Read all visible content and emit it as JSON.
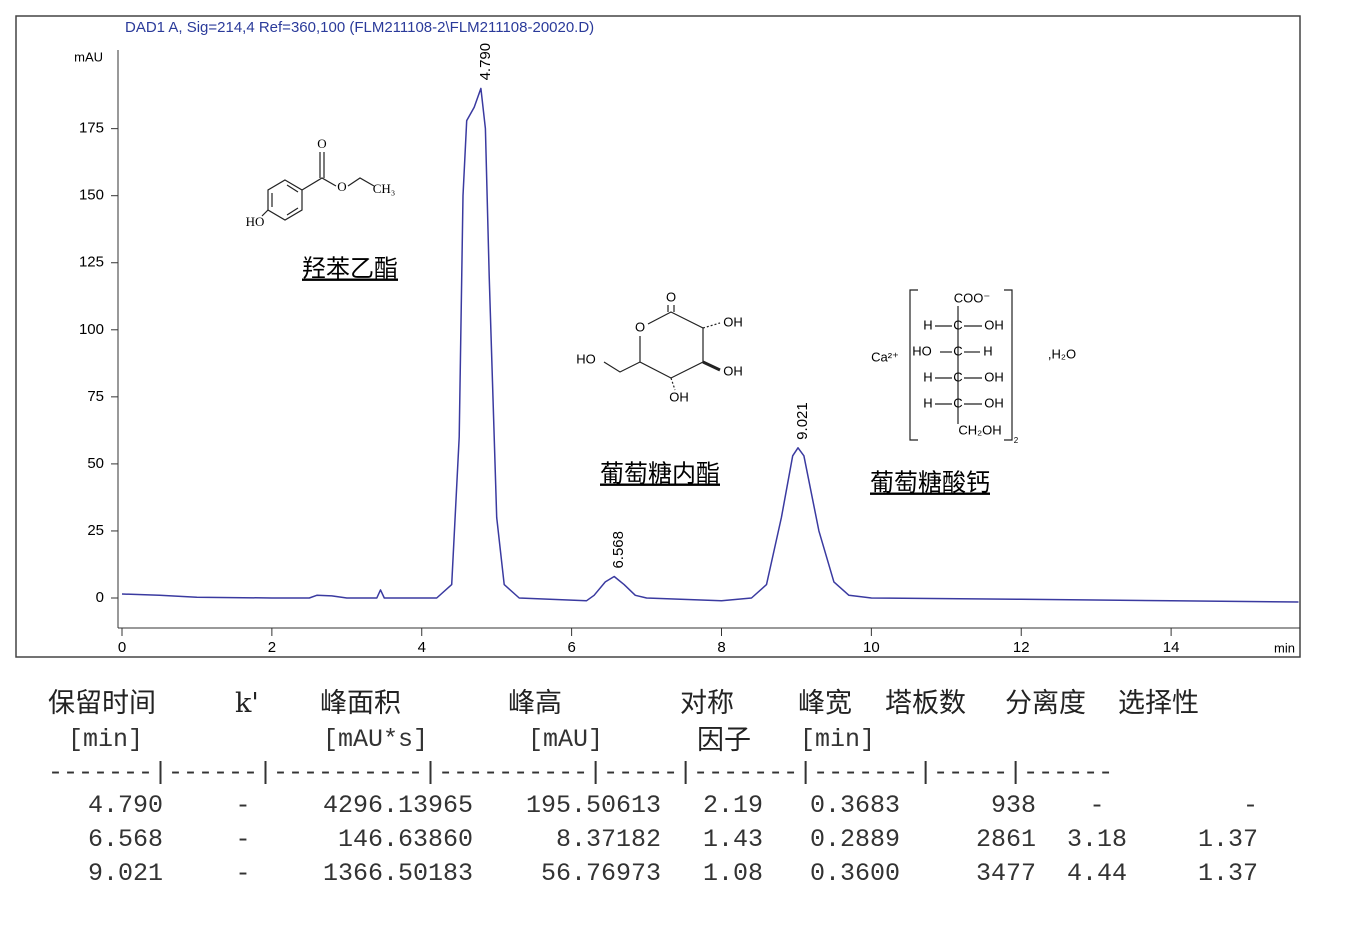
{
  "chart_data": {
    "type": "line",
    "title": "DAD1 A, Sig=214,4 Ref=360,100 (FLM211108-2\\FLM211108-20020.D)",
    "y_label": "mAU",
    "x_label": "min",
    "x": [
      0,
      0.5,
      1,
      2,
      2.5,
      2.6,
      2.8,
      3.0,
      3.4,
      3.45,
      3.5,
      4.2,
      4.4,
      4.5,
      4.55,
      4.6,
      4.7,
      4.79,
      4.85,
      4.9,
      5.0,
      5.1,
      5.3,
      6.2,
      6.3,
      6.45,
      6.568,
      6.7,
      6.85,
      7.0,
      8.0,
      8.4,
      8.6,
      8.8,
      8.95,
      9.021,
      9.1,
      9.3,
      9.5,
      9.7,
      10,
      12,
      14,
      15.7
    ],
    "series": [
      {
        "name": "DAD1 A",
        "color": "#3a3aa0",
        "values": [
          1.5,
          1,
          0.3,
          0,
          0,
          1,
          0.8,
          0,
          0,
          3,
          0,
          0,
          5,
          60,
          150,
          178,
          183,
          190,
          175,
          120,
          30,
          5,
          0,
          -1,
          1,
          6,
          8,
          5,
          1,
          0,
          -1,
          0,
          5,
          30,
          53,
          56,
          53,
          25,
          6,
          1,
          0,
          -0.5,
          -1,
          -1.5
        ]
      }
    ],
    "peaks": [
      {
        "value": 4.79,
        "label": "4.790"
      },
      {
        "value": 6.568,
        "label": "6.568"
      },
      {
        "value": 9.021,
        "label": "9.021"
      }
    ],
    "xlim": [
      -0.08,
      15.72
    ],
    "ylim": [
      -22,
      217
    ],
    "xticks": [
      0,
      2,
      4,
      6,
      8,
      10,
      12,
      14
    ],
    "yticks": [
      0,
      25,
      50,
      75,
      100,
      125,
      150,
      175
    ]
  },
  "structures": [
    {
      "name": "羟苯乙酯",
      "labels": [
        "O",
        "O",
        "CH₃",
        "HO"
      ]
    },
    {
      "name": "葡萄糖内酯",
      "labels": [
        "O",
        "O",
        "OH",
        "OH",
        "OH",
        "HO"
      ]
    },
    {
      "name": "葡萄糖酸钙",
      "labels": [
        "COO⁻",
        "H",
        "C",
        "OH",
        "HO",
        "C",
        "H",
        "H",
        "C",
        "OH",
        "H",
        "C",
        "OH",
        "CH₂OH",
        "Ca²⁺",
        ",H₂O",
        "2"
      ]
    }
  ],
  "table": {
    "columns": [
      [
        "保留时间",
        "[min]"
      ],
      [
        "k'"
      ],
      [
        "峰面积",
        "[mAU*s]"
      ],
      [
        "峰高",
        "[mAU]"
      ],
      [
        "对称",
        "因子"
      ],
      [
        "峰宽",
        "[min]"
      ],
      [
        "塔板数"
      ],
      [
        "分离度"
      ],
      [
        "选择性"
      ]
    ],
    "rule": "-------|------|----------|----------|-----|-------|-------|-----|------",
    "rows": [
      [
        "4.790",
        "-",
        "4296.13965",
        "195.50613",
        "2.19",
        "0.3683",
        "938",
        "-",
        "-"
      ],
      [
        "6.568",
        "-",
        "146.63860",
        "8.37182",
        "1.43",
        "0.2889",
        "2861",
        "3.18",
        "1.37"
      ],
      [
        "9.021",
        "-",
        "1366.50183",
        "56.76973",
        "1.08",
        "0.3600",
        "3477",
        "4.44",
        "1.37"
      ]
    ]
  }
}
